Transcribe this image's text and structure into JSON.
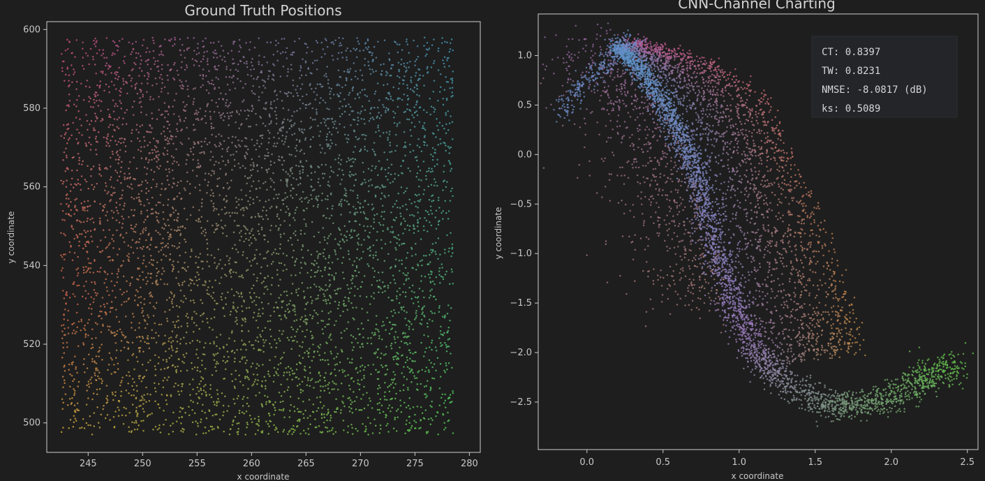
{
  "chart_data": [
    {
      "type": "scatter",
      "title": "Ground Truth Positions",
      "xlabel": "x coordinate",
      "ylabel": "y coordinate",
      "xlim": [
        241.2,
        281.0
      ],
      "ylim": [
        492.5,
        602.0
      ],
      "xticks": [
        245,
        250,
        255,
        260,
        265,
        270,
        275,
        280
      ],
      "yticks": [
        500,
        520,
        540,
        560,
        580,
        600
      ],
      "grid": false,
      "point_region": {
        "x": [
          242.5,
          278.5
        ],
        "y": [
          497,
          598
        ]
      },
      "color_corners": {
        "top_left": "#c0467a",
        "top_right": "#3f8fb0",
        "bottom_left": "#c9a23a",
        "bottom_right": "#4fbf4f",
        "left_middle": "#c0443f"
      }
    },
    {
      "type": "scatter",
      "title": "CNN-Channel Charting",
      "xlabel": "x coordinate",
      "ylabel": "y coordinate",
      "xlim": [
        -0.32,
        2.57
      ],
      "ylim": [
        -2.98,
        1.42
      ],
      "xticks": [
        "0.0",
        "0.5",
        "1.0",
        "1.5",
        "2.0",
        "2.5"
      ],
      "yticks": [
        "1.0",
        "0.5",
        "0.0",
        "−0.5",
        "−1.0",
        "−1.5",
        "−2.0",
        "−2.5"
      ],
      "grid": false,
      "annotations": [
        "CT: 0.8397",
        "TW: 0.8231",
        "NMSE: -8.0817 (dB)",
        "ks: 0.5089"
      ],
      "legend": "top-right",
      "structure": {
        "ridge": [
          [
            0.2,
            1.1
          ],
          [
            0.35,
            0.85
          ],
          [
            0.5,
            0.5
          ],
          [
            0.65,
            0.05
          ],
          [
            0.75,
            -0.4
          ],
          [
            0.85,
            -1.0
          ],
          [
            0.95,
            -1.5
          ],
          [
            1.1,
            -2.0
          ],
          [
            1.3,
            -2.3
          ],
          [
            1.6,
            -2.55
          ],
          [
            1.9,
            -2.5
          ],
          [
            2.2,
            -2.3
          ],
          [
            2.4,
            -2.1
          ]
        ],
        "left_edge": [
          [
            -0.2,
            0.4
          ],
          [
            0.0,
            0.75
          ],
          [
            0.2,
            1.05
          ],
          [
            0.3,
            1.15
          ]
        ],
        "top_edge": [
          [
            0.3,
            1.15
          ],
          [
            0.6,
            1.05
          ],
          [
            0.9,
            0.9
          ],
          [
            1.2,
            0.6
          ],
          [
            1.35,
            0.0
          ],
          [
            1.55,
            -0.7
          ],
          [
            1.75,
            -1.5
          ],
          [
            1.8,
            -2.0
          ]
        ]
      }
    }
  ]
}
